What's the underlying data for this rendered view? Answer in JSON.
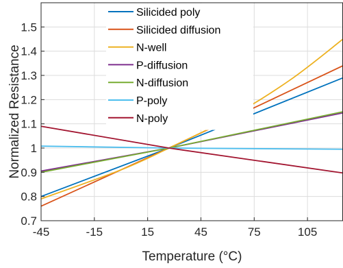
{
  "chart_data": {
    "type": "line",
    "title": "",
    "xlabel": "Temperature (°C)",
    "ylabel": "Normalized Resistance",
    "xlim": [
      -45,
      125
    ],
    "ylim": [
      0.7,
      1.6
    ],
    "xticks": [
      -45,
      -15,
      15,
      45,
      75,
      105
    ],
    "xtick_labels": [
      "-45",
      "-15",
      "15",
      "45",
      "75",
      "105"
    ],
    "yticks": [
      0.7,
      0.8,
      0.9,
      1,
      1.1,
      1.2,
      1.3,
      1.4,
      1.5
    ],
    "ytick_labels": [
      "0.7",
      "0.8",
      "0.9",
      "1",
      "1.1",
      "1.2",
      "1.3",
      "1.4",
      "1.5"
    ],
    "grid": true,
    "legend_position": "top-center",
    "series": [
      {
        "name": "Silicided poly",
        "color": "#0072BD",
        "x": [
          -45,
          27,
          125
        ],
        "y": [
          0.8,
          1.0,
          1.29
        ]
      },
      {
        "name": "Silicided diffusion",
        "color": "#D95319",
        "x": [
          -45,
          27,
          125
        ],
        "y": [
          0.76,
          1.0,
          1.34
        ]
      },
      {
        "name": "N-well",
        "color": "#EDB120",
        "x": [
          -45,
          0,
          27,
          60,
          95,
          125
        ],
        "y": [
          0.79,
          0.91,
          1.0,
          1.12,
          1.28,
          1.45
        ]
      },
      {
        "name": "P-diffusion",
        "color": "#7E2F8E",
        "x": [
          -45,
          27,
          125
        ],
        "y": [
          0.905,
          1.0,
          1.145
        ]
      },
      {
        "name": "N-diffusion",
        "color": "#77AC30",
        "x": [
          -45,
          27,
          125
        ],
        "y": [
          0.9,
          1.0,
          1.15
        ]
      },
      {
        "name": "P-poly",
        "color": "#4DBEEE",
        "x": [
          -45,
          27,
          125
        ],
        "y": [
          1.008,
          1.0,
          0.995
        ]
      },
      {
        "name": "N-poly",
        "color": "#A2142F",
        "x": [
          -45,
          27,
          125
        ],
        "y": [
          1.09,
          1.0,
          0.897
        ]
      }
    ]
  }
}
